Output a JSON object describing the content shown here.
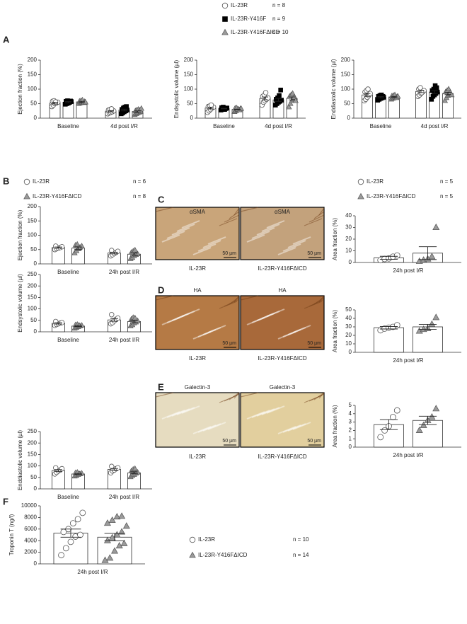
{
  "panel_labels": [
    "A",
    "B",
    "C",
    "D",
    "E",
    "F"
  ],
  "legends": [
    {
      "entries": [
        {
          "name": "IL-23R",
          "n": "n = 8",
          "marker": "circle"
        },
        {
          "name": "IL-23R-Y416F",
          "n": "n = 9",
          "marker": "square"
        },
        {
          "name": "IL-23R-Y416FΔICD",
          "n": "n = 10",
          "marker": "triangle"
        }
      ]
    },
    {
      "entries": [
        {
          "name": "IL-23R",
          "n": "n = 6",
          "marker": "circle"
        },
        {
          "name": "IL-23R-Y416FΔICD",
          "n": "n = 8",
          "marker": "triangle"
        }
      ]
    },
    {
      "entries": [
        {
          "name": "IL-23R",
          "n": "n = 5",
          "marker": "circle"
        },
        {
          "name": "IL-23R-Y416FΔICD",
          "n": "n = 5",
          "marker": "triangle"
        }
      ]
    },
    {
      "entries": [
        {
          "name": "IL-23R",
          "n": "n = 10",
          "marker": "circle"
        },
        {
          "name": "IL-23R-Y416FΔICD",
          "n": "n = 14",
          "marker": "triangle"
        }
      ]
    }
  ],
  "images": [
    {
      "title": "αSMA",
      "caption": "IL-23R",
      "scale": "50 µm",
      "color": "#c9a57a"
    },
    {
      "title": "αSMA",
      "caption": "IL-23R-Y416FΔICD",
      "scale": "50 µm",
      "color": "#c3a27c"
    },
    {
      "title": "HA",
      "caption": "IL-23R",
      "scale": "50 µm",
      "color": "#b57a45"
    },
    {
      "title": "HA",
      "caption": "IL-23R-Y416FΔICD",
      "scale": "50 µm",
      "color": "#a8693a"
    },
    {
      "title": "Galectin-3",
      "caption": "IL-23R",
      "scale": "50 µm",
      "color": "#e6dcc0"
    },
    {
      "title": "Galectin-3",
      "caption": "IL-23R-Y416FΔICD",
      "scale": "50 µm",
      "color": "#e2cf9e"
    }
  ],
  "chart_data": [
    {
      "type": "bar",
      "ylabel": "Ejection fraction (%)",
      "categories": [
        "Baseline",
        "4d post I/R"
      ],
      "ylim": [
        0,
        200
      ],
      "yticks": [
        0,
        50,
        100,
        150,
        200
      ],
      "series": [
        {
          "marker": "circle",
          "values": [
            52,
            24
          ],
          "errors": [
            3,
            2
          ],
          "points": [
            [
              40,
              45,
              50,
              52,
              55,
              58,
              60,
              56
            ],
            [
              15,
              18,
              20,
              22,
              25,
              28,
              30,
              32
            ]
          ]
        },
        {
          "marker": "square",
          "values": [
            55,
            28
          ],
          "errors": [
            2,
            3
          ],
          "points": [
            [
              48,
              50,
              52,
              55,
              57,
              58,
              60,
              55,
              59
            ],
            [
              15,
              18,
              22,
              25,
              28,
              30,
              35,
              38,
              40
            ]
          ]
        },
        {
          "marker": "triangle",
          "values": [
            56,
            23
          ],
          "errors": [
            2,
            2
          ],
          "points": [
            [
              50,
              52,
              54,
              55,
              57,
              58,
              60,
              62,
              53,
              55
            ],
            [
              12,
              15,
              18,
              20,
              22,
              25,
              28,
              30,
              27,
              33
            ]
          ]
        }
      ]
    },
    {
      "type": "bar",
      "ylabel": "Endsystolic volume (µl)",
      "categories": [
        "Baseline",
        "4d post I/R"
      ],
      "ylim": [
        0,
        200
      ],
      "yticks": [
        0,
        50,
        100,
        150,
        200
      ],
      "series": [
        {
          "marker": "circle",
          "values": [
            35,
            68
          ],
          "errors": [
            3,
            5
          ],
          "points": [
            [
              20,
              25,
              30,
              35,
              38,
              40,
              42,
              45
            ],
            [
              45,
              55,
              60,
              65,
              70,
              75,
              80,
              88
            ]
          ]
        },
        {
          "marker": "square",
          "values": [
            33,
            63
          ],
          "errors": [
            1,
            5
          ],
          "points": [
            [
              28,
              30,
              32,
              33,
              35,
              36,
              38,
              30,
              34
            ],
            [
              45,
              50,
              55,
              58,
              62,
              65,
              70,
              78,
              97
            ]
          ]
        },
        {
          "marker": "triangle",
          "values": [
            30,
            68
          ],
          "errors": [
            1,
            5
          ],
          "points": [
            [
              22,
              25,
              28,
              30,
              32,
              34,
              35,
              30,
              28,
              33
            ],
            [
              38,
              50,
              60,
              65,
              70,
              75,
              80,
              85,
              72,
              60
            ]
          ]
        }
      ]
    },
    {
      "type": "bar",
      "ylabel": "Enddiastolic volume (µl)",
      "categories": [
        "Baseline",
        "4d post I/R"
      ],
      "ylim": [
        0,
        200
      ],
      "yticks": [
        0,
        50,
        100,
        150,
        200
      ],
      "series": [
        {
          "marker": "circle",
          "values": [
            80,
            92
          ],
          "errors": [
            5,
            4
          ],
          "points": [
            [
              60,
              65,
              72,
              78,
              85,
              90,
              95,
              100
            ],
            [
              75,
              80,
              85,
              90,
              95,
              100,
              105,
              88
            ]
          ]
        },
        {
          "marker": "square",
          "values": [
            72,
            90
          ],
          "errors": [
            2,
            5
          ],
          "points": [
            [
              62,
              65,
              68,
              70,
              72,
              75,
              78,
              80,
              75
            ],
            [
              65,
              75,
              80,
              85,
              90,
              95,
              100,
              112,
              105
            ]
          ]
        },
        {
          "marker": "triangle",
          "values": [
            73,
            85
          ],
          "errors": [
            2,
            4
          ],
          "points": [
            [
              65,
              68,
              70,
              72,
              74,
              76,
              78,
              80,
              70,
              75
            ],
            [
              60,
              70,
              78,
              82,
              85,
              90,
              95,
              100,
              88,
              80
            ]
          ]
        }
      ]
    },
    {
      "type": "bar",
      "ylabel": "Ejection fraction (%)",
      "categories": [
        "Baseline",
        "24h post I/R"
      ],
      "ylim": [
        0,
        200
      ],
      "yticks": [
        0,
        50,
        100,
        150,
        200
      ],
      "series": [
        {
          "marker": "circle",
          "values": [
            57,
            38
          ],
          "errors": [
            2,
            3
          ],
          "points": [
            [
              50,
              53,
              55,
              57,
              60,
              62
            ],
            [
              28,
              32,
              36,
              40,
              44,
              47
            ]
          ]
        },
        {
          "marker": "triangle",
          "values": [
            55,
            34
          ],
          "errors": [
            4,
            4
          ],
          "points": [
            [
              38,
              45,
              52,
              58,
              62,
              65,
              68,
              55
            ],
            [
              18,
              22,
              28,
              32,
              35,
              40,
              44,
              48
            ]
          ]
        }
      ]
    },
    {
      "type": "bar",
      "ylabel": "Endsystolic volume (µl)",
      "categories": [
        "Baseline",
        "24h post I/R"
      ],
      "ylim": [
        0,
        250
      ],
      "yticks": [
        0,
        50,
        100,
        150,
        200,
        250
      ],
      "series": [
        {
          "marker": "circle",
          "values": [
            37,
            52
          ],
          "errors": [
            3,
            6
          ],
          "points": [
            [
              28,
              32,
              35,
              38,
              40,
              45
            ],
            [
              35,
              40,
              48,
              55,
              60,
              75
            ]
          ]
        },
        {
          "marker": "triangle",
          "values": [
            25,
            45
          ],
          "errors": [
            2,
            5
          ],
          "points": [
            [
              15,
              18,
              22,
              25,
              28,
              30,
              32,
              28
            ],
            [
              25,
              30,
              38,
              42,
              48,
              55,
              62,
              60
            ]
          ]
        }
      ]
    },
    {
      "type": "bar",
      "ylabel": "Enddiastolic volume (µl)",
      "categories": [
        "Baseline",
        "24h post I/R"
      ],
      "ylim": [
        0,
        250
      ],
      "yticks": [
        0,
        50,
        100,
        150,
        200,
        250
      ],
      "series": [
        {
          "marker": "circle",
          "values": [
            80,
            85
          ],
          "errors": [
            4,
            4
          ],
          "points": [
            [
              65,
              72,
              78,
              82,
              88,
              92
            ],
            [
              70,
              78,
              82,
              88,
              92,
              98
            ]
          ]
        },
        {
          "marker": "triangle",
          "values": [
            65,
            70
          ],
          "errors": [
            2,
            4
          ],
          "points": [
            [
              55,
              58,
              62,
              65,
              68,
              70,
              72,
              66
            ],
            [
              52,
              58,
              62,
              68,
              72,
              78,
              85,
              88
            ]
          ]
        }
      ]
    },
    {
      "type": "bar",
      "ylabel": "Area fraction (%)",
      "categories": [
        "24h post I/R"
      ],
      "ylim": [
        0,
        40
      ],
      "yticks": [
        0,
        10,
        20,
        30,
        40
      ],
      "series": [
        {
          "marker": "circle",
          "values": [
            4
          ],
          "errors": [
            1.3
          ],
          "points": [
            [
              2,
              3,
              3.5,
              5,
              6
            ]
          ]
        },
        {
          "marker": "triangle",
          "values": [
            8
          ],
          "errors": [
            5.5
          ],
          "points": [
            [
              1,
              2,
              3,
              5,
              30
            ]
          ]
        }
      ]
    },
    {
      "type": "bar",
      "ylabel": "Area fraction (%)",
      "categories": [
        "24h post I/R"
      ],
      "ylim": [
        0,
        50
      ],
      "yticks": [
        0,
        10,
        20,
        30,
        40,
        50
      ],
      "series": [
        {
          "marker": "circle",
          "values": [
            29
          ],
          "errors": [
            1.5
          ],
          "points": [
            [
              26,
              28,
              29,
              30,
              32
            ]
          ]
        },
        {
          "marker": "triangle",
          "values": [
            30
          ],
          "errors": [
            3
          ],
          "points": [
            [
              25,
              27,
              28,
              33,
              41
            ]
          ]
        }
      ]
    },
    {
      "type": "bar",
      "ylabel": "Area fraction (%)",
      "categories": [
        "24h post I/R"
      ],
      "ylim": [
        0,
        5
      ],
      "yticks": [
        0,
        1,
        2,
        3,
        4,
        5
      ],
      "series": [
        {
          "marker": "circle",
          "values": [
            2.7
          ],
          "errors": [
            0.6
          ],
          "points": [
            [
              1.2,
              2,
              2.5,
              3.6,
              4.4
            ]
          ]
        },
        {
          "marker": "triangle",
          "values": [
            3.2
          ],
          "errors": [
            0.5
          ],
          "points": [
            [
              2,
              2.6,
              3.2,
              3.6,
              4.6
            ]
          ]
        }
      ]
    },
    {
      "type": "bar",
      "ylabel": "Troponin T (ng/l)",
      "categories": [
        "24h post I/R"
      ],
      "ylim": [
        0,
        10000
      ],
      "yticks": [
        0,
        2000,
        4000,
        6000,
        8000,
        10000
      ],
      "series": [
        {
          "marker": "circle",
          "values": [
            5300
          ],
          "errors": [
            700
          ],
          "points": [
            [
              1500,
              2700,
              3800,
              4700,
              5000,
              5500,
              6000,
              7000,
              7700,
              8800
            ]
          ]
        },
        {
          "marker": "triangle",
          "values": [
            4600
          ],
          "errors": [
            650
          ],
          "points": [
            [
              600,
              1000,
              2200,
              3100,
              3500,
              4000,
              4500,
              5000,
              5500,
              6500,
              7000,
              7500,
              8100,
              8200
            ]
          ]
        }
      ]
    }
  ]
}
